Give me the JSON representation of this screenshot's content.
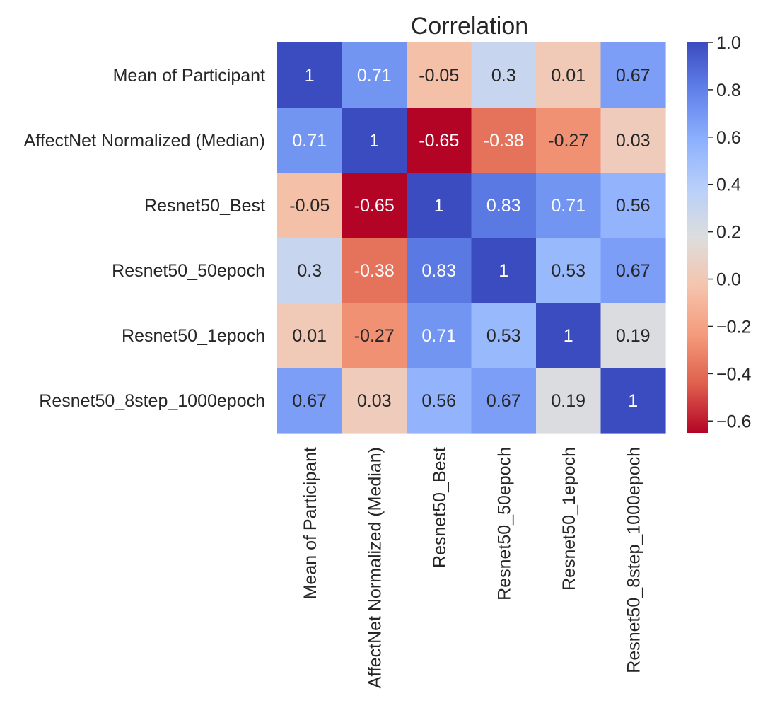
{
  "chart_data": {
    "type": "heatmap",
    "title": "Correlation",
    "row_labels": [
      "Mean of Participant",
      "AffectNet Normalized (Median)",
      "Resnet50_Best",
      "Resnet50_50epoch",
      "Resnet50_1epoch",
      "Resnet50_8step_1000epoch"
    ],
    "col_labels": [
      "Mean of Participant",
      "AffectNet Normalized (Median)",
      "Resnet50_Best",
      "Resnet50_50epoch",
      "Resnet50_1epoch",
      "Resnet50_8step_1000epoch"
    ],
    "values": [
      [
        1,
        0.71,
        -0.05,
        0.3,
        0.01,
        0.67
      ],
      [
        0.71,
        1,
        -0.65,
        -0.38,
        -0.27,
        0.03
      ],
      [
        -0.05,
        -0.65,
        1,
        0.83,
        0.71,
        0.56
      ],
      [
        0.3,
        -0.38,
        0.83,
        1,
        0.53,
        0.67
      ],
      [
        0.01,
        -0.27,
        0.71,
        0.53,
        1,
        0.19
      ],
      [
        0.67,
        0.03,
        0.56,
        0.67,
        0.19,
        1
      ]
    ],
    "annotations": [
      [
        "1",
        "0.71",
        "-0.05",
        "0.3",
        "0.01",
        "0.67"
      ],
      [
        "0.71",
        "1",
        "-0.65",
        "-0.38",
        "-0.27",
        "0.03"
      ],
      [
        "-0.05",
        "-0.65",
        "1",
        "0.83",
        "0.71",
        "0.56"
      ],
      [
        "0.3",
        "-0.38",
        "0.83",
        "1",
        "0.53",
        "0.67"
      ],
      [
        "0.01",
        "-0.27",
        "0.71",
        "0.53",
        "1",
        "0.19"
      ],
      [
        "0.67",
        "0.03",
        "0.56",
        "0.67",
        "0.19",
        "1"
      ]
    ],
    "colormap": "coolwarm_r",
    "vmin": -0.65,
    "vmax": 1.0,
    "colorbar_ticks": [
      1.0,
      0.8,
      0.6,
      0.4,
      0.2,
      0.0,
      -0.2,
      -0.4,
      -0.6
    ],
    "colorbar_tick_labels": [
      "1.0",
      "0.8",
      "0.6",
      "0.4",
      "0.2",
      "0.0",
      "−0.2",
      "−0.4",
      "−0.6"
    ],
    "colors": {
      "high": "#3b4cc0",
      "mid": "#dddddd",
      "low": "#b40426",
      "text_dark": "#262626",
      "text_light": "#ffffff",
      "axis_text": "#262626"
    }
  }
}
